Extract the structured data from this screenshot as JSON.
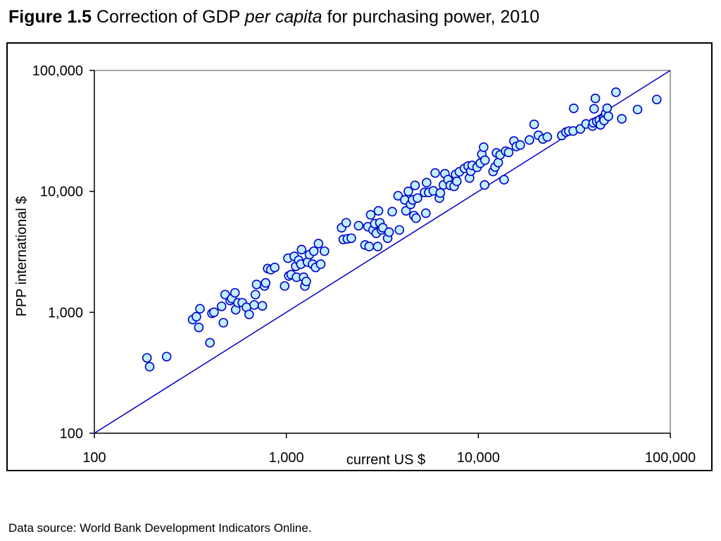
{
  "title": {
    "figure_label": "Figure 1.5",
    "text_before": "Correction of GDP",
    "text_italic": "per capita",
    "text_after": "for purchasing power, 2010"
  },
  "source": "Data source: World Bank Development Indicators Online.",
  "chart_data": {
    "type": "scatter",
    "title": "Figure 1.5 Correction of GDP per capita for purchasing power, 2010",
    "xlabel": "current US $",
    "ylabel": "PPP international $",
    "x_scale": "log",
    "y_scale": "log",
    "xlim": [
      100,
      100000
    ],
    "ylim": [
      100,
      100000
    ],
    "x_ticks": [
      100,
      1000,
      10000,
      100000
    ],
    "x_tick_labels": [
      "100",
      "1,000",
      "10,000",
      "100,000"
    ],
    "y_ticks": [
      100,
      1000,
      10000,
      100000
    ],
    "y_tick_labels": [
      "100",
      "1,000",
      "10,000",
      "100,000"
    ],
    "grid": false,
    "legend": "none",
    "reference_line": {
      "from": [
        100,
        100
      ],
      "to": [
        100000,
        100000
      ],
      "color": "#0000cc"
    },
    "marker_fill": "#bfefff",
    "marker_stroke": "#0000cc",
    "points": [
      [
        188,
        420
      ],
      [
        194,
        355
      ],
      [
        238,
        430
      ],
      [
        325,
        870
      ],
      [
        340,
        920
      ],
      [
        350,
        750
      ],
      [
        355,
        1070
      ],
      [
        400,
        560
      ],
      [
        410,
        980
      ],
      [
        420,
        1000
      ],
      [
        460,
        1120
      ],
      [
        470,
        820
      ],
      [
        480,
        1400
      ],
      [
        510,
        1250
      ],
      [
        520,
        1300
      ],
      [
        540,
        1450
      ],
      [
        545,
        1050
      ],
      [
        560,
        1200
      ],
      [
        590,
        1200
      ],
      [
        620,
        1100
      ],
      [
        640,
        960
      ],
      [
        680,
        1150
      ],
      [
        690,
        1400
      ],
      [
        700,
        1700
      ],
      [
        750,
        1130
      ],
      [
        770,
        1650
      ],
      [
        780,
        1750
      ],
      [
        800,
        2300
      ],
      [
        830,
        2250
      ],
      [
        870,
        2350
      ],
      [
        980,
        1650
      ],
      [
        1020,
        2800
      ],
      [
        1030,
        2000
      ],
      [
        1060,
        2050
      ],
      [
        1100,
        2900
      ],
      [
        1120,
        2400
      ],
      [
        1130,
        1950
      ],
      [
        1160,
        2700
      ],
      [
        1190,
        2500
      ],
      [
        1200,
        3300
      ],
      [
        1230,
        1950
      ],
      [
        1250,
        1650
      ],
      [
        1270,
        1800
      ],
      [
        1290,
        2600
      ],
      [
        1320,
        3000
      ],
      [
        1370,
        2500
      ],
      [
        1390,
        3200
      ],
      [
        1420,
        2350
      ],
      [
        1470,
        3700
      ],
      [
        1510,
        2500
      ],
      [
        1580,
        3200
      ],
      [
        1940,
        5000
      ],
      [
        1980,
        4000
      ],
      [
        2050,
        5500
      ],
      [
        2080,
        4050
      ],
      [
        2180,
        4100
      ],
      [
        2380,
        5200
      ],
      [
        2570,
        3600
      ],
      [
        2660,
        5100
      ],
      [
        2700,
        3500
      ],
      [
        2750,
        6400
      ],
      [
        2830,
        4800
      ],
      [
        2890,
        5400
      ],
      [
        2940,
        4500
      ],
      [
        2990,
        3500
      ],
      [
        3020,
        6900
      ],
      [
        3070,
        5500
      ],
      [
        3130,
        4800
      ],
      [
        3180,
        5000
      ],
      [
        3370,
        4100
      ],
      [
        3430,
        4600
      ],
      [
        3560,
        6800
      ],
      [
        3820,
        9200
      ],
      [
        3880,
        4800
      ],
      [
        4140,
        8500
      ],
      [
        4200,
        6900
      ],
      [
        4320,
        10000
      ],
      [
        4440,
        7800
      ],
      [
        4550,
        8500
      ],
      [
        4620,
        6300
      ],
      [
        4680,
        11200
      ],
      [
        4740,
        6000
      ],
      [
        4820,
        8800
      ],
      [
        5250,
        9800
      ],
      [
        5330,
        6600
      ],
      [
        5380,
        11800
      ],
      [
        5520,
        9800
      ],
      [
        5830,
        10100
      ],
      [
        5960,
        14200
      ],
      [
        6270,
        8800
      ],
      [
        6340,
        9700
      ],
      [
        6580,
        11300
      ],
      [
        6700,
        14000
      ],
      [
        6950,
        12500
      ],
      [
        7140,
        11200
      ],
      [
        7480,
        11000
      ],
      [
        7620,
        13800
      ],
      [
        7730,
        12100
      ],
      [
        7970,
        14500
      ],
      [
        8470,
        15500
      ],
      [
        8850,
        16200
      ],
      [
        9000,
        12900
      ],
      [
        9140,
        14700
      ],
      [
        9290,
        16400
      ],
      [
        9850,
        15800
      ],
      [
        10240,
        17100
      ],
      [
        10430,
        20300
      ],
      [
        10660,
        23200
      ],
      [
        10780,
        11300
      ],
      [
        10830,
        18100
      ],
      [
        11940,
        14600
      ],
      [
        12230,
        15900
      ],
      [
        12440,
        20800
      ],
      [
        12700,
        17300
      ],
      [
        12990,
        20000
      ],
      [
        13620,
        12500
      ],
      [
        13880,
        21500
      ],
      [
        14390,
        21000
      ],
      [
        15330,
        26100
      ],
      [
        15780,
        23500
      ],
      [
        16530,
        24200
      ],
      [
        18460,
        26600
      ],
      [
        19530,
        35800
      ],
      [
        20560,
        29100
      ],
      [
        21700,
        27100
      ],
      [
        22880,
        28200
      ],
      [
        27200,
        29000
      ],
      [
        28600,
        30900
      ],
      [
        29600,
        31500
      ],
      [
        31200,
        31600
      ],
      [
        31400,
        48600
      ],
      [
        34000,
        32800
      ],
      [
        36400,
        36100
      ],
      [
        39300,
        34700
      ],
      [
        39700,
        36900
      ],
      [
        40100,
        48200
      ],
      [
        40700,
        58700
      ],
      [
        41400,
        38000
      ],
      [
        42700,
        38800
      ],
      [
        43300,
        35500
      ],
      [
        44900,
        40200
      ],
      [
        45200,
        38600
      ],
      [
        46100,
        44200
      ],
      [
        46900,
        48700
      ],
      [
        47600,
        41800
      ],
      [
        52100,
        66000
      ],
      [
        55900,
        39800
      ],
      [
        67500,
        47500
      ],
      [
        85000,
        57500
      ]
    ]
  }
}
